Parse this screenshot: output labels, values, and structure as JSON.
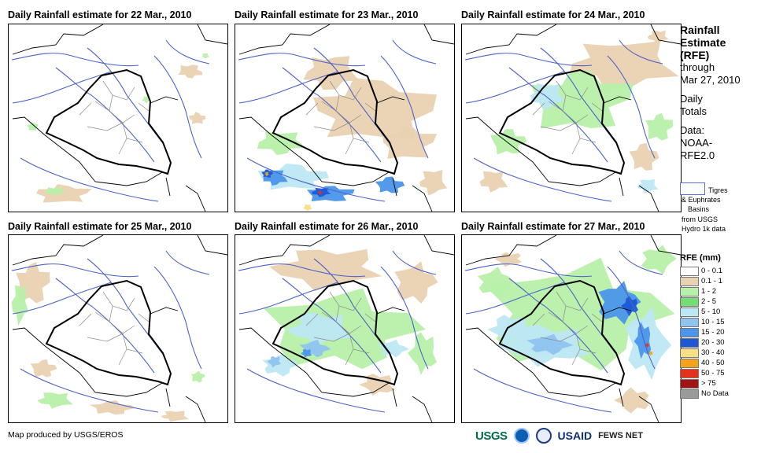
{
  "panels": [
    {
      "title": "Daily Rainfall estimate for 22 Mar., 2010"
    },
    {
      "title": "Daily Rainfall estimate for 23 Mar., 2010"
    },
    {
      "title": "Daily Rainfall estimate for 24 Mar., 2010"
    },
    {
      "title": "Daily Rainfall estimate for 25 Mar., 2010"
    },
    {
      "title": "Daily Rainfall estimate for 26 Mar., 2010"
    },
    {
      "title": "Daily Rainfall estimate for 27 Mar., 2010"
    }
  ],
  "legend": {
    "line1": "Rainfall",
    "line2": "Estimate",
    "line3": "(RFE)",
    "line4": "through",
    "line5": "Mar 27, 2010",
    "line6": "Daily",
    "line7": "Totals",
    "line8": "Data:",
    "line9": "NOAA-",
    "line10": "RFE2.0"
  },
  "basin_legend": {
    "l1": "Tigres",
    "l2": "& Euphrates",
    "l3": "Basins",
    "l4": "from USGS",
    "l5": "Hydro 1k data"
  },
  "rfe": {
    "title": "RFE (mm)",
    "classes": [
      {
        "label": "0 - 0.1",
        "color": "#ffffff"
      },
      {
        "label": "0.1 - 1",
        "color": "#e9d2b1"
      },
      {
        "label": "1 - 2",
        "color": "#b7f0a9"
      },
      {
        "label": "2 - 5",
        "color": "#73de73"
      },
      {
        "label": "5 - 10",
        "color": "#bde7f4"
      },
      {
        "label": "10 - 15",
        "color": "#8fc4f0"
      },
      {
        "label": "15 - 20",
        "color": "#4b95ea"
      },
      {
        "label": "20 - 30",
        "color": "#1d57d6"
      },
      {
        "label": "30 - 40",
        "color": "#f7e084"
      },
      {
        "label": "40 - 50",
        "color": "#f6a21a"
      },
      {
        "label": "50 - 75",
        "color": "#e8311c"
      },
      {
        "label": "> 75",
        "color": "#a31414"
      },
      {
        "label": "No Data",
        "color": "#9a9a9a"
      }
    ]
  },
  "footer": {
    "credit": "Map produced by USGS/EROS",
    "usgs": "USGS",
    "usaid": "USAID",
    "fews": "FEWS NET"
  }
}
